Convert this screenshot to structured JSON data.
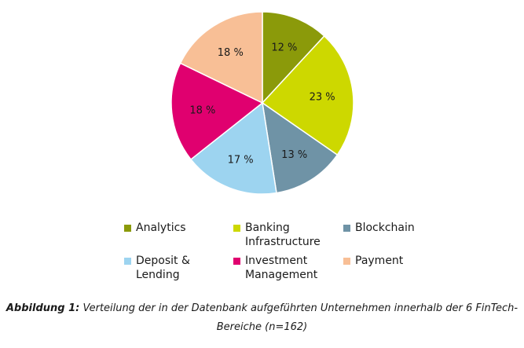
{
  "chart_data": {
    "type": "pie",
    "categories": [
      "Analytics",
      "Banking Infrastructure",
      "Blockchain",
      "Deposit & Lending",
      "Investment Management",
      "Payment"
    ],
    "values": [
      12,
      23,
      13,
      17,
      18,
      18
    ],
    "value_labels": [
      "12 %",
      "23 %",
      "13 %",
      "17 %",
      "18 %",
      "18 %"
    ],
    "colors": [
      "#8b9a0a",
      "#cdd800",
      "#6f93a6",
      "#9dd4f0",
      "#e0006f",
      "#f8bf96"
    ],
    "legend_placement": "bottom",
    "title": ""
  },
  "legend": {
    "items": [
      {
        "label": "Analytics"
      },
      {
        "label": "Banking Infrastructure"
      },
      {
        "label": "Blockchain"
      },
      {
        "label": "Deposit & Lending"
      },
      {
        "label": "Investment Management"
      },
      {
        "label": "Payment"
      }
    ]
  },
  "caption": {
    "label": "Abbildung 1:",
    "text": "Verteilung der in der Datenbank aufgeführten Unternehmen innerhalb der 6 FinTech-Bereiche (n=162)"
  }
}
